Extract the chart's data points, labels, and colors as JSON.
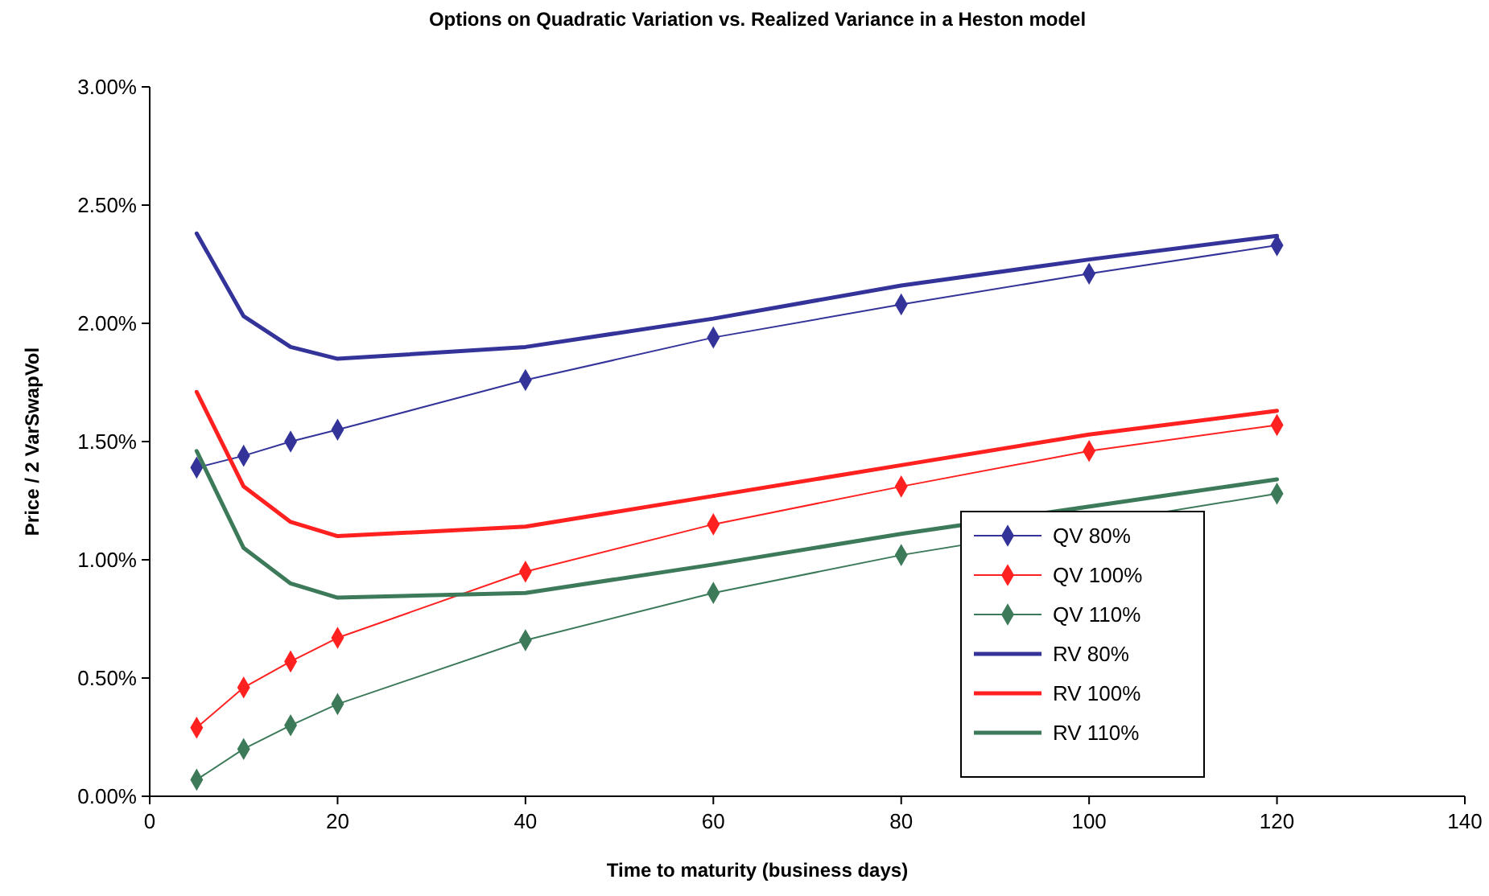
{
  "chart_data": {
    "type": "line",
    "title": "Options on Quadratic Variation vs. Realized Variance in a Heston model",
    "xlabel": "Time to maturity (business days)",
    "ylabel": "Price / 2 VarSwapVol",
    "x": [
      5,
      10,
      15,
      20,
      40,
      60,
      80,
      100,
      120
    ],
    "xlim": [
      0,
      140
    ],
    "xticks": [
      0,
      20,
      40,
      60,
      80,
      100,
      120,
      140
    ],
    "ylim": [
      0,
      3
    ],
    "yticks": [
      {
        "value": 0,
        "label": "0.00%"
      },
      {
        "value": 0.5,
        "label": "0.50%"
      },
      {
        "value": 1,
        "label": "1.00%"
      },
      {
        "value": 1.5,
        "label": "1.50%"
      },
      {
        "value": 2,
        "label": "2.00%"
      },
      {
        "value": 2.5,
        "label": "2.50%"
      },
      {
        "value": 3,
        "label": "3.00%"
      }
    ],
    "grid": false,
    "legend": "bottom right",
    "series": [
      {
        "name": "QV 80%",
        "color": "#333399",
        "marker": "diamond",
        "values": [
          1.39,
          1.44,
          1.5,
          1.55,
          1.76,
          1.94,
          2.08,
          2.21,
          2.33
        ]
      },
      {
        "name": "QV 100%",
        "color": "#ff2020",
        "marker": "diamond",
        "values": [
          0.29,
          0.46,
          0.57,
          0.67,
          0.95,
          1.15,
          1.31,
          1.46,
          1.57
        ]
      },
      {
        "name": "QV 110%",
        "color": "#3d7a5a",
        "marker": "diamond",
        "values": [
          0.07,
          0.2,
          0.3,
          0.39,
          0.66,
          0.86,
          1.02,
          null,
          1.28
        ]
      },
      {
        "name": "RV 80%",
        "color": "#333399",
        "marker": "none",
        "values": [
          2.38,
          2.03,
          1.9,
          1.85,
          1.9,
          2.02,
          2.16,
          2.27,
          2.37
        ]
      },
      {
        "name": "RV 100%",
        "color": "#ff2020",
        "marker": "none",
        "values": [
          1.71,
          1.31,
          1.16,
          1.1,
          1.14,
          1.27,
          1.4,
          1.53,
          1.63
        ]
      },
      {
        "name": "RV 110%",
        "color": "#3d7a5a",
        "marker": "none",
        "values": [
          1.46,
          1.05,
          0.9,
          0.84,
          0.86,
          0.98,
          1.11,
          null,
          1.34
        ]
      }
    ]
  }
}
